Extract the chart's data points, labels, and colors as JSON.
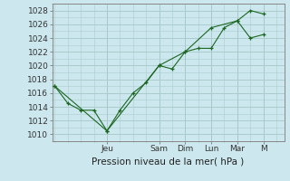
{
  "background_color": "#cce8ee",
  "grid_color": "#aacccc",
  "line_color": "#1a6620",
  "marker_color": "#1a6620",
  "xlabel": "Pression niveau de la mer( hPa )",
  "ylim": [
    1009,
    1029
  ],
  "yticks": [
    1010,
    1012,
    1014,
    1016,
    1018,
    1020,
    1022,
    1024,
    1026,
    1028
  ],
  "day_labels": [
    "Jeu",
    "Sam",
    "Dim",
    "Lun",
    "Mar",
    "M"
  ],
  "day_positions": [
    2,
    4,
    5,
    6,
    7,
    8
  ],
  "xlim": [
    -0.1,
    8.8
  ],
  "line1_x": [
    0,
    0.5,
    1,
    1.5,
    2,
    2.5,
    3,
    3.5,
    4,
    4.5,
    5,
    5.5,
    6,
    6.5,
    7,
    7.5,
    8
  ],
  "line1_y": [
    1017,
    1014.5,
    1013.5,
    1013.5,
    1010.5,
    1013.5,
    1016,
    1017.5,
    1020,
    1019.5,
    1022,
    1022.5,
    1022.5,
    1025.5,
    1026.5,
    1028,
    1027.5
  ],
  "line2_x": [
    0,
    2,
    4,
    5,
    6,
    7,
    7.5,
    8
  ],
  "line2_y": [
    1017,
    1010.5,
    1020,
    1022,
    1025.5,
    1026.5,
    1024,
    1024.5
  ]
}
